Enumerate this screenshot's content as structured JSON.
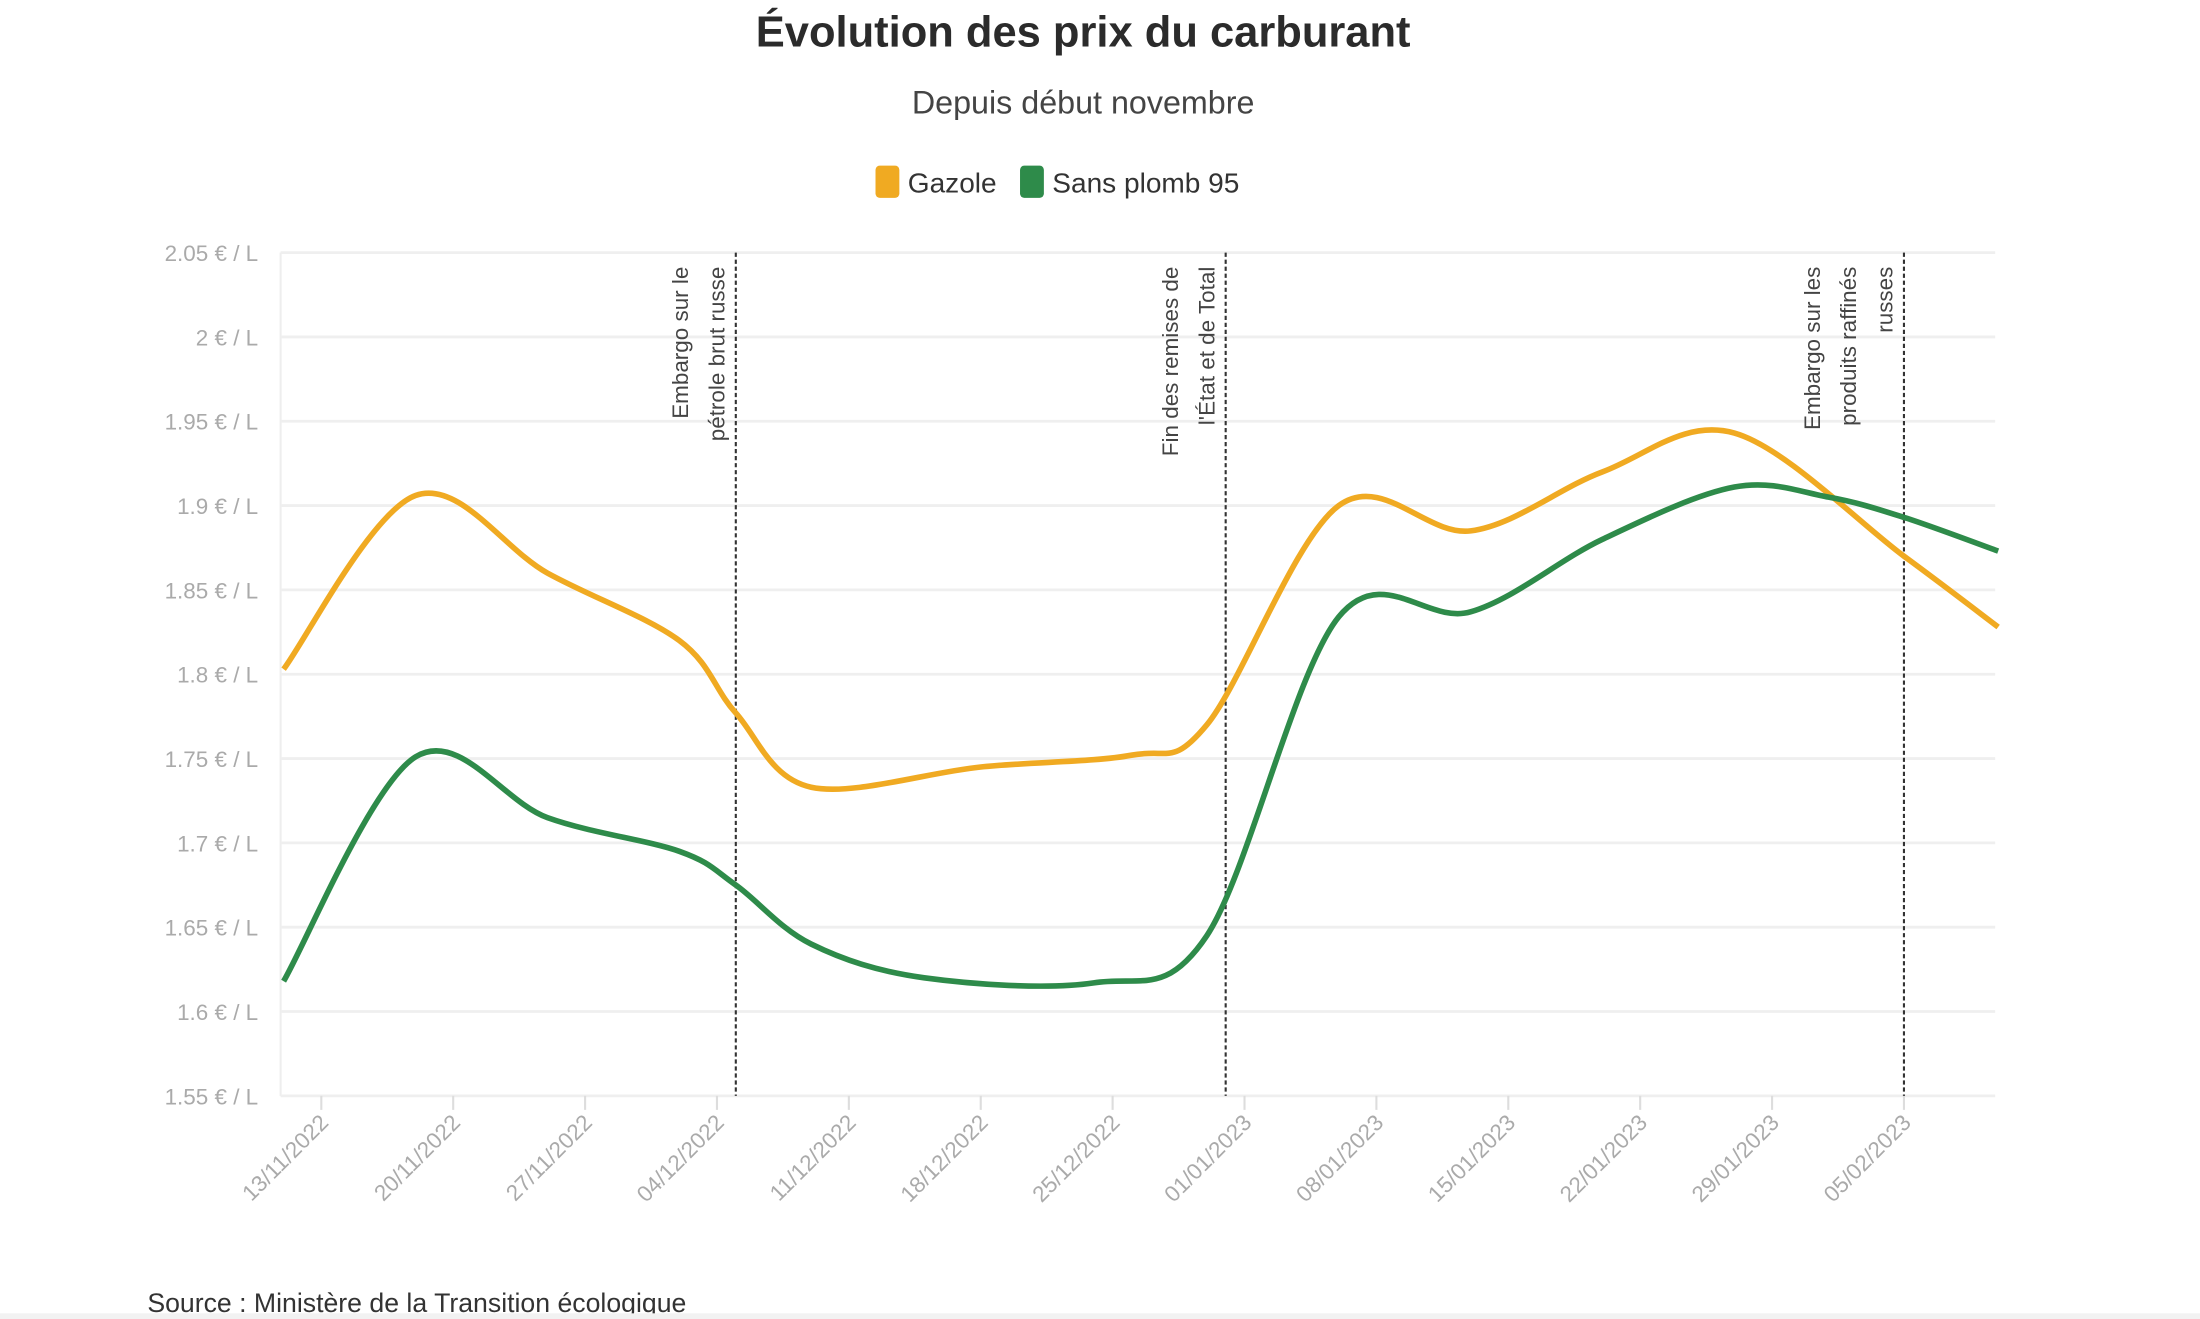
{
  "chart_data": {
    "type": "line",
    "title": "Évolution des prix du carburant",
    "subtitle": "Depuis début novembre",
    "source": "Source : Ministère de la Transition écologique",
    "xlabel": "",
    "ylabel": "",
    "ylim": [
      1.55,
      2.05
    ],
    "yticks": [
      2.05,
      2.0,
      1.95,
      1.9,
      1.85,
      1.8,
      1.75,
      1.7,
      1.65,
      1.6,
      1.55
    ],
    "ytick_labels": [
      "2.05 € / L",
      "2 € / L",
      "1.95 € / L",
      "1.9 € / L",
      "1.85 € / L",
      "1.8 € / L",
      "1.75 € / L",
      "1.7 € / L",
      "1.65 € / L",
      "1.6 € / L",
      "1.55 € / L"
    ],
    "xlim": [
      "2022-11-11",
      "2023-02-10"
    ],
    "xticks": [
      "2022-11-13",
      "2022-11-20",
      "2022-11-27",
      "2022-12-04",
      "2022-12-11",
      "2022-12-18",
      "2022-12-25",
      "2023-01-01",
      "2023-01-08",
      "2023-01-15",
      "2023-01-22",
      "2023-01-29",
      "2023-02-05"
    ],
    "xtick_labels": [
      "13/11/2022",
      "20/11/2022",
      "27/11/2022",
      "04/12/2022",
      "11/12/2022",
      "18/12/2022",
      "25/12/2022",
      "01/01/2023",
      "08/01/2023",
      "15/01/2023",
      "22/01/2023",
      "29/01/2023",
      "05/02/2023"
    ],
    "grid": true,
    "legend_position": "top-center",
    "series": [
      {
        "name": "Gazole",
        "color": "#f0aa22",
        "points": [
          [
            "2022-11-11",
            1.803
          ],
          [
            "2022-11-18",
            1.906
          ],
          [
            "2022-11-25",
            1.86
          ],
          [
            "2022-12-02",
            1.82
          ],
          [
            "2022-12-05",
            1.777
          ],
          [
            "2022-12-09",
            1.733
          ],
          [
            "2022-12-18",
            1.745
          ],
          [
            "2022-12-26",
            1.752
          ],
          [
            "2022-12-30",
            1.77
          ],
          [
            "2023-01-06",
            1.9
          ],
          [
            "2023-01-13",
            1.885
          ],
          [
            "2023-01-20",
            1.92
          ],
          [
            "2023-01-27",
            1.943
          ],
          [
            "2023-02-05",
            1.87
          ],
          [
            "2023-02-10",
            1.828
          ]
        ]
      },
      {
        "name": "Sans plomb 95",
        "color": "#2e8b4a",
        "points": [
          [
            "2022-11-11",
            1.618
          ],
          [
            "2022-11-18",
            1.751
          ],
          [
            "2022-11-25",
            1.715
          ],
          [
            "2022-12-02",
            1.695
          ],
          [
            "2022-12-05",
            1.675
          ],
          [
            "2022-12-09",
            1.64
          ],
          [
            "2022-12-15",
            1.62
          ],
          [
            "2022-12-24",
            1.617
          ],
          [
            "2022-12-30",
            1.645
          ],
          [
            "2023-01-06",
            1.834
          ],
          [
            "2023-01-13",
            1.837
          ],
          [
            "2023-01-20",
            1.88
          ],
          [
            "2023-01-27",
            1.911
          ],
          [
            "2023-02-01",
            1.905
          ],
          [
            "2023-02-05",
            1.893
          ],
          [
            "2023-02-10",
            1.873
          ]
        ]
      }
    ],
    "annotations": [
      {
        "date": "2022-12-05",
        "lines": [
          "Embargo sur le",
          "pétrole brut russe"
        ]
      },
      {
        "date": "2022-12-31",
        "lines": [
          "Fin des remises de",
          "l'État et de Total"
        ]
      },
      {
        "date": "2023-02-05",
        "lines": [
          "Embargo sur les",
          "produits raffinés",
          "russes"
        ]
      }
    ]
  }
}
